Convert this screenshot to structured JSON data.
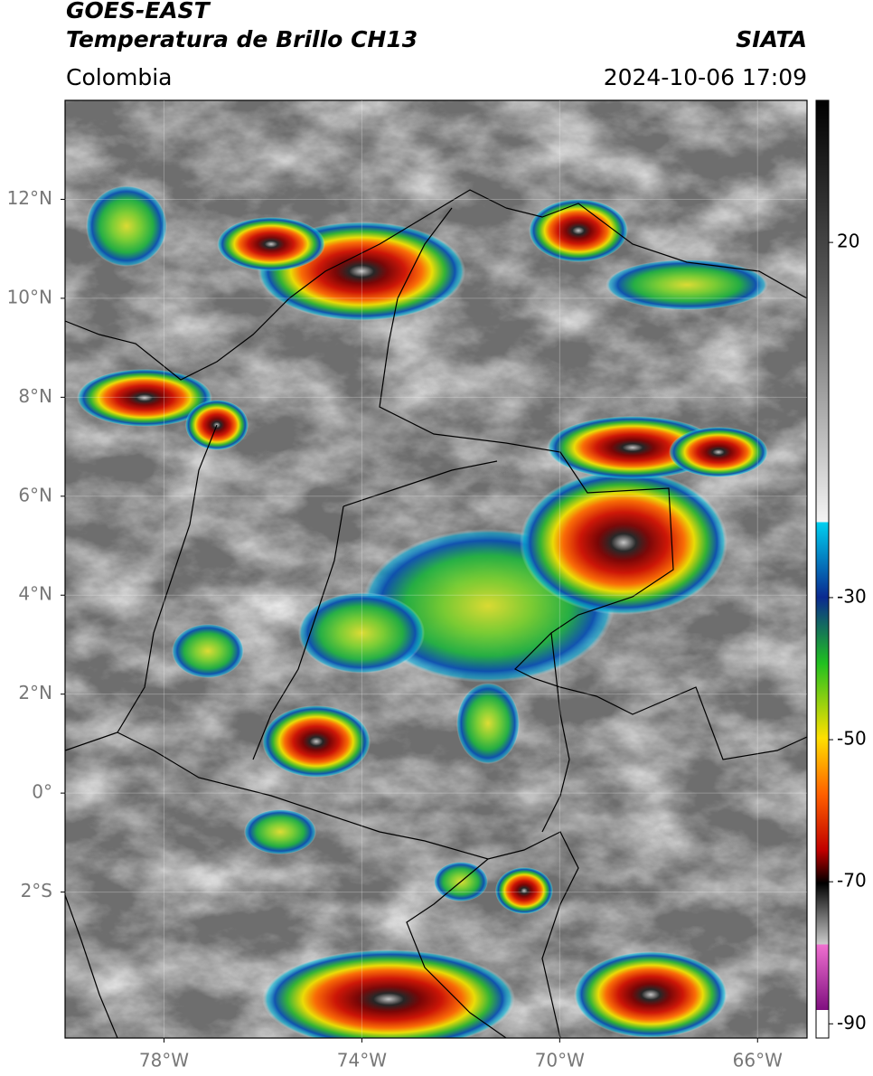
{
  "header": {
    "title": "GOES-EAST",
    "subtitle": "Temperatura de Brillo CH13",
    "source": "SIATA",
    "region": "Colombia",
    "timestamp": "2024-10-06 17:09"
  },
  "map": {
    "xlim": [
      -80,
      -65
    ],
    "ylim": [
      -4.95,
      14
    ],
    "xticks": [
      {
        "value": -78,
        "label": "78°W"
      },
      {
        "value": -74,
        "label": "74°W"
      },
      {
        "value": -70,
        "label": "70°W"
      },
      {
        "value": -66,
        "label": "66°W"
      }
    ],
    "yticks": [
      {
        "value": 12,
        "label": "12°N"
      },
      {
        "value": 10,
        "label": "10°N"
      },
      {
        "value": 8,
        "label": "8°N"
      },
      {
        "value": 6,
        "label": "6°N"
      },
      {
        "value": 4,
        "label": "4°N"
      },
      {
        "value": 2,
        "label": "2°N"
      },
      {
        "value": 0,
        "label": "0°"
      },
      {
        "value": -2,
        "label": "2°S"
      }
    ]
  },
  "colorbar": {
    "lim": [
      -92,
      40
    ],
    "ticks": [
      20,
      -30,
      -50,
      -70,
      -90
    ]
  }
}
